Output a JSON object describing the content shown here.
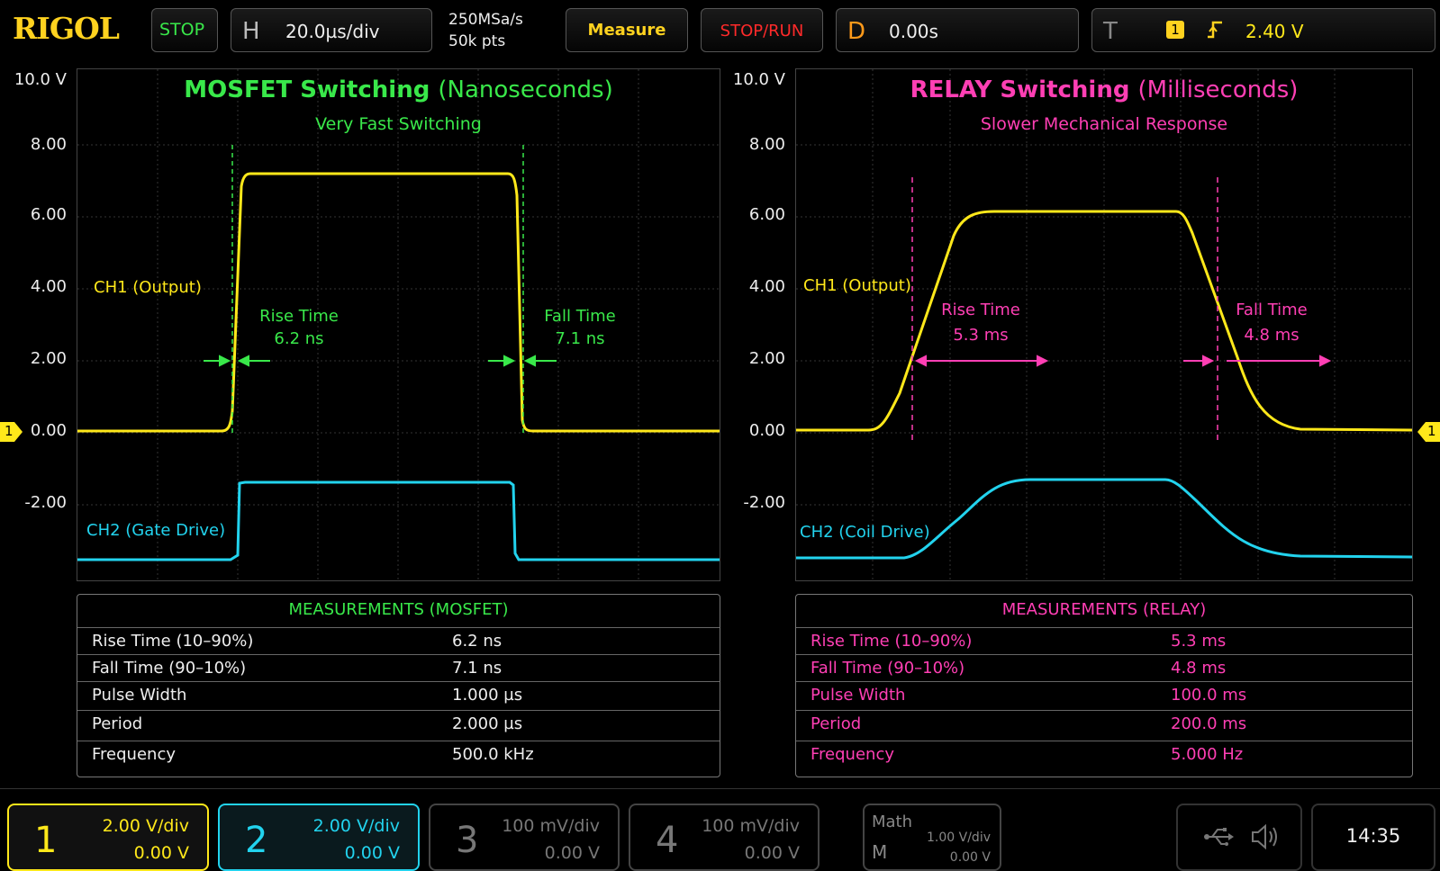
{
  "topbar": {
    "logo": "RIGOL",
    "run_state": "STOP",
    "h_label": "H",
    "timebase": "20.0µs/div",
    "sample_rate": "250MSa/s",
    "memory_depth": "50k pts",
    "measure": "Measure",
    "stop_run": "STOP/RUN",
    "d_label": "D",
    "delay": "0.00s",
    "t_label": "T",
    "trigger_source": "1",
    "trigger_level": "2.40 V"
  },
  "y_axis_labels": [
    "10.0 V",
    "8.00",
    "6.00",
    "4.00",
    "2.00",
    "0.00",
    "-2.00"
  ],
  "left_panel": {
    "title_main": "MOSFET Switching",
    "title_paren": "(Nanoseconds)",
    "subtitle": "Very Fast Switching",
    "ch1_label": "CH1 (Output)",
    "ch2_label": "CH2 (Gate Drive)",
    "rise_label": "Rise Time",
    "rise_value": "6.2 ns",
    "fall_label": "Fall Time",
    "fall_value": "7.1 ns"
  },
  "right_panel": {
    "title_main": "RELAY Switching",
    "title_paren": "(Milliseconds)",
    "subtitle": "Slower Mechanical Response",
    "ch1_label": "CH1 (Output)",
    "ch2_label": "CH2 (Coil Drive)",
    "rise_label": "Rise Time",
    "rise_value": "5.3 ms",
    "fall_label": "Fall Time",
    "fall_value": "4.8 ms"
  },
  "ch1_marker": "1",
  "measurements_mosfet": {
    "title": "MEASUREMENTS (MOSFET)",
    "rows": [
      {
        "label": "Rise Time  (10–90%)",
        "value": "6.2 ns"
      },
      {
        "label": "Fall Time  (90–10%)",
        "value": "7.1 ns"
      },
      {
        "label": "Pulse Width",
        "value": "1.000 µs"
      },
      {
        "label": "Period",
        "value": "2.000 µs"
      },
      {
        "label": "Frequency",
        "value": "500.0 kHz"
      }
    ]
  },
  "measurements_relay": {
    "title": "MEASUREMENTS (RELAY)",
    "rows": [
      {
        "label": "Rise Time  (10–90%)",
        "value": "5.3 ms"
      },
      {
        "label": "Fall Time  (90–10%)",
        "value": "4.8 ms"
      },
      {
        "label": "Pulse Width",
        "value": "100.0 ms"
      },
      {
        "label": "Period",
        "value": "200.0 ms"
      },
      {
        "label": "Frequency",
        "value": "5.000 Hz"
      }
    ]
  },
  "channels": [
    {
      "num": "1",
      "scale": "2.00 V/div",
      "offset": "0.00 V",
      "color": "#ffe81a"
    },
    {
      "num": "2",
      "scale": "2.00 V/div",
      "offset": "0.00 V",
      "color": "#22d3ee"
    },
    {
      "num": "3",
      "scale": "100 mV/div",
      "offset": "0.00 V",
      "color": "#777777"
    },
    {
      "num": "4",
      "scale": "100 mV/div",
      "offset": "0.00 V",
      "color": "#777777"
    }
  ],
  "math": {
    "label": "Math",
    "m": "M",
    "scale": "1.00 V/div",
    "offset": "0.00 V"
  },
  "icons": [
    "usb-icon",
    "speaker-icon"
  ],
  "clock": "14:35",
  "colors": {
    "ch1": "#ffe81a",
    "ch2": "#22d3ee",
    "mosfet_accent": "#39e84a",
    "relay_accent": "#ff3fb4"
  }
}
